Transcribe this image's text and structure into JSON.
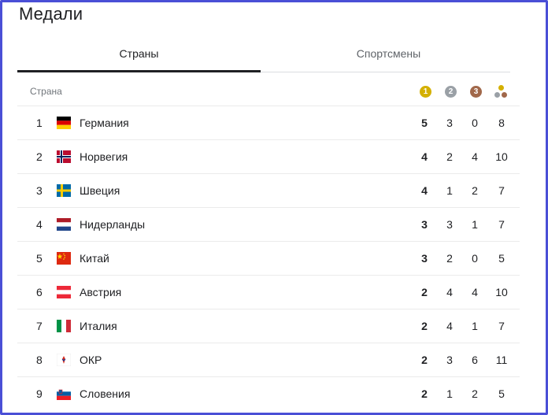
{
  "title": "Медали",
  "tabs": [
    {
      "label": "Страны",
      "active": true
    },
    {
      "label": "Спортсмены",
      "active": false
    }
  ],
  "header": {
    "country_label": "Страна",
    "gold": {
      "label": "1",
      "color": "#d4b000"
    },
    "silver": {
      "label": "2",
      "color": "#9aa0a6"
    },
    "bronze": {
      "label": "3",
      "color": "#a1684a"
    },
    "total_icon": "medals-total-icon"
  },
  "rows": [
    {
      "rank": "1",
      "country": "Германия",
      "flag": "germany-flag",
      "gold": "5",
      "silver": "3",
      "bronze": "0",
      "total": "8"
    },
    {
      "rank": "2",
      "country": "Норвегия",
      "flag": "norway-flag",
      "gold": "4",
      "silver": "2",
      "bronze": "4",
      "total": "10"
    },
    {
      "rank": "3",
      "country": "Швеция",
      "flag": "sweden-flag",
      "gold": "4",
      "silver": "1",
      "bronze": "2",
      "total": "7"
    },
    {
      "rank": "4",
      "country": "Нидерланды",
      "flag": "netherlands-flag",
      "gold": "3",
      "silver": "3",
      "bronze": "1",
      "total": "7"
    },
    {
      "rank": "5",
      "country": "Китай",
      "flag": "china-flag",
      "gold": "3",
      "silver": "2",
      "bronze": "0",
      "total": "5"
    },
    {
      "rank": "6",
      "country": "Австрия",
      "flag": "austria-flag",
      "gold": "2",
      "silver": "4",
      "bronze": "4",
      "total": "10"
    },
    {
      "rank": "7",
      "country": "Италия",
      "flag": "italy-flag",
      "gold": "2",
      "silver": "4",
      "bronze": "1",
      "total": "7"
    },
    {
      "rank": "8",
      "country": "ОКР",
      "flag": "roc-flag",
      "gold": "2",
      "silver": "3",
      "bronze": "6",
      "total": "11"
    },
    {
      "rank": "9",
      "country": "Словения",
      "flag": "slovenia-flag",
      "gold": "2",
      "silver": "1",
      "bronze": "2",
      "total": "5"
    }
  ]
}
